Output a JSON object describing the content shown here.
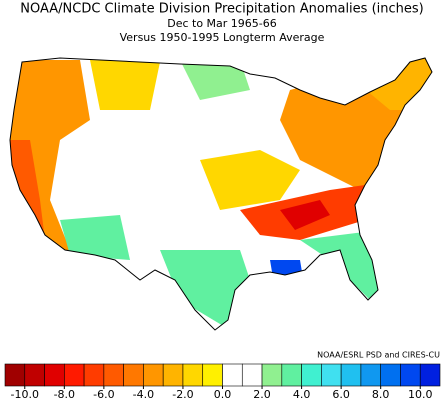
{
  "header": {
    "title": "NOAA/NCDC Climate Division Precipitation Anomalies (inches)",
    "subtitle": "Dec to Mar 1965-66",
    "subtitle2": "Versus 1950-1995 Longterm Average"
  },
  "credit": "NOAA/ESRL PSD and CIRES-CU",
  "colorbar": {
    "bounds": [
      -11,
      -10,
      -9,
      -8,
      -7,
      -6,
      -5,
      -4,
      -3,
      -2,
      -1,
      0,
      1,
      2,
      3,
      4,
      5,
      6,
      7,
      8,
      9,
      10,
      11
    ],
    "colors": [
      "#a00000",
      "#c00000",
      "#e00000",
      "#ff1a00",
      "#ff3c00",
      "#ff5a00",
      "#ff7800",
      "#ff9600",
      "#ffb400",
      "#ffd700",
      "#fff000",
      "#ffffff",
      "#ffffff",
      "#90f090",
      "#60f0a0",
      "#40f0d0",
      "#40e0f0",
      "#20c0f0",
      "#1098f0",
      "#0070f0",
      "#0048f0",
      "#0020e0"
    ],
    "ticks": [
      {
        "value": -10,
        "label": "-10.0"
      },
      {
        "value": -8,
        "label": "-8.0"
      },
      {
        "value": -6,
        "label": "-6.0"
      },
      {
        "value": -4,
        "label": "-4.0"
      },
      {
        "value": -2,
        "label": "-2.0"
      },
      {
        "value": 0,
        "label": "0.0"
      },
      {
        "value": 2,
        "label": "2.0"
      },
      {
        "value": 4,
        "label": "4.0"
      },
      {
        "value": 6,
        "label": "6.0"
      },
      {
        "value": 8,
        "label": "8.0"
      },
      {
        "value": 10,
        "label": "10.0"
      }
    ]
  }
}
